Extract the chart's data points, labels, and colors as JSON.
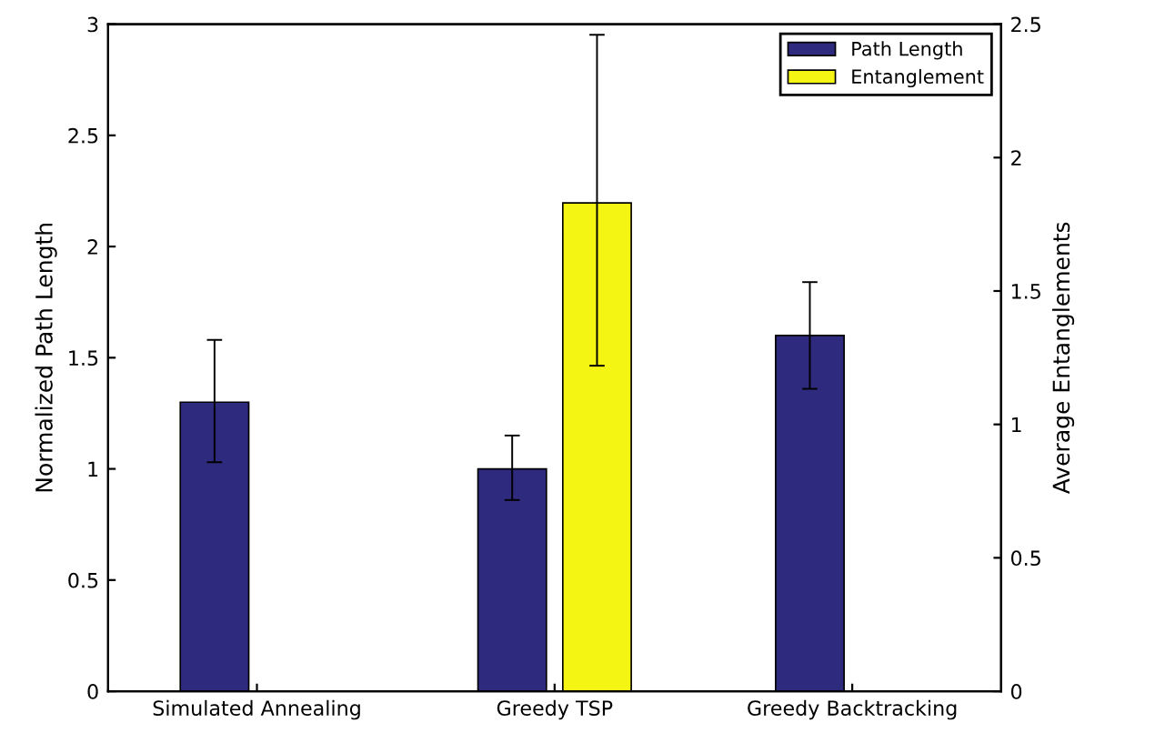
{
  "chart_data": {
    "type": "bar",
    "categories": [
      "Simulated Annealing",
      "Greedy TSP",
      "Greedy Backtracking"
    ],
    "ylabel": "Normalized Path Length",
    "y2label": "Average Entanglements",
    "series": [
      {
        "name": "Path Length",
        "color": "#2e2a7e",
        "values": [
          1.3,
          1.0,
          1.6
        ],
        "errors": [
          [
            1.03,
            1.58
          ],
          [
            0.86,
            1.15
          ],
          [
            1.36,
            1.84
          ]
        ]
      },
      {
        "name": "Entanglement",
        "color": "#f5f514",
        "axis": "y2",
        "values": [
          null,
          1.83,
          null
        ],
        "errors": [
          null,
          [
            1.22,
            2.46
          ],
          null
        ]
      }
    ],
    "ylim": [
      0,
      3
    ],
    "yticks": [
      0,
      0.5,
      1,
      1.5,
      2,
      2.5,
      3
    ],
    "y2lim": [
      0,
      2.5
    ],
    "y2ticks": [
      0,
      0.5,
      1,
      1.5,
      2,
      2.5
    ],
    "grid": false,
    "legend": "top right"
  }
}
